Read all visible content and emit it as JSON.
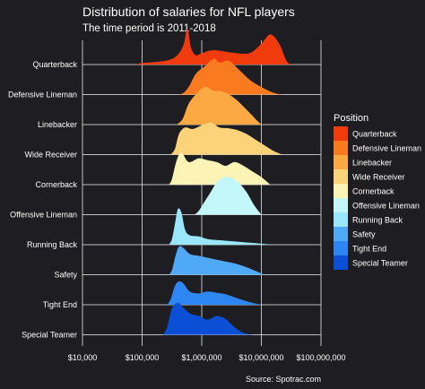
{
  "chart_data": {
    "type": "ridgeline",
    "title": "Distribution of salaries for NFL players",
    "subtitle": "The time period is 2011-2018",
    "caption": "Source: Spotrac.com",
    "xscale": "log10",
    "xlim": [
      10000,
      100000000
    ],
    "xticks": [
      10000,
      100000,
      1000000,
      10000000,
      100000000
    ],
    "xtick_labels": [
      "$10,000",
      "$100,000",
      "$1,000,000",
      "$10,000,000",
      "$100,000,000"
    ],
    "legend": {
      "title": "Position",
      "placement": "right"
    },
    "series": [
      {
        "name": "Quarterback",
        "color": "#f23b0c",
        "density": [
          [
            4.9,
            0
          ],
          [
            5.0,
            0.04
          ],
          [
            5.3,
            0.08
          ],
          [
            5.5,
            0.15
          ],
          [
            5.62,
            0.3
          ],
          [
            5.7,
            0.55
          ],
          [
            5.76,
            0.95
          ],
          [
            5.82,
            0.45
          ],
          [
            5.9,
            0.25
          ],
          [
            6.0,
            0.3
          ],
          [
            6.2,
            0.38
          ],
          [
            6.5,
            0.32
          ],
          [
            6.8,
            0.3
          ],
          [
            7.0,
            0.55
          ],
          [
            7.15,
            0.8
          ],
          [
            7.3,
            0.55
          ],
          [
            7.42,
            0.1
          ],
          [
            7.5,
            0
          ]
        ]
      },
      {
        "name": "Defensive Lineman",
        "color": "#f97a1f",
        "density": [
          [
            5.6,
            0
          ],
          [
            5.7,
            0.05
          ],
          [
            5.8,
            0.25
          ],
          [
            5.9,
            0.55
          ],
          [
            6.05,
            0.75
          ],
          [
            6.2,
            0.95
          ],
          [
            6.3,
            0.85
          ],
          [
            6.45,
            0.9
          ],
          [
            6.6,
            0.7
          ],
          [
            6.8,
            0.4
          ],
          [
            7.0,
            0.2
          ],
          [
            7.2,
            0.05
          ],
          [
            7.35,
            0
          ]
        ]
      },
      {
        "name": "Linebacker",
        "color": "#fca843",
        "density": [
          [
            5.58,
            0
          ],
          [
            5.68,
            0.15
          ],
          [
            5.78,
            0.55
          ],
          [
            5.9,
            0.8
          ],
          [
            6.05,
            1.0
          ],
          [
            6.2,
            0.9
          ],
          [
            6.35,
            0.88
          ],
          [
            6.55,
            0.7
          ],
          [
            6.75,
            0.4
          ],
          [
            6.9,
            0.15
          ],
          [
            7.0,
            0
          ]
        ]
      },
      {
        "name": "Wide Receiver",
        "color": "#fdd37a",
        "density": [
          [
            5.48,
            0
          ],
          [
            5.55,
            0.15
          ],
          [
            5.62,
            0.55
          ],
          [
            5.72,
            0.72
          ],
          [
            5.85,
            0.68
          ],
          [
            6.0,
            0.78
          ],
          [
            6.15,
            0.85
          ],
          [
            6.3,
            0.72
          ],
          [
            6.45,
            0.7
          ],
          [
            6.6,
            0.65
          ],
          [
            6.75,
            0.55
          ],
          [
            6.9,
            0.4
          ],
          [
            7.05,
            0.25
          ],
          [
            7.2,
            0.1
          ],
          [
            7.35,
            0
          ]
        ]
      },
      {
        "name": "Cornerback",
        "color": "#fdf3b4",
        "density": [
          [
            5.45,
            0
          ],
          [
            5.5,
            0.15
          ],
          [
            5.58,
            0.65
          ],
          [
            5.66,
            0.85
          ],
          [
            5.78,
            0.6
          ],
          [
            5.95,
            0.7
          ],
          [
            6.1,
            0.65
          ],
          [
            6.25,
            0.6
          ],
          [
            6.4,
            0.5
          ],
          [
            6.55,
            0.6
          ],
          [
            6.7,
            0.5
          ],
          [
            6.85,
            0.35
          ],
          [
            7.0,
            0.2
          ],
          [
            7.15,
            0
          ]
        ]
      },
      {
        "name": "Offensive Lineman",
        "color": "#c3f7fa",
        "density": [
          [
            5.88,
            0
          ],
          [
            5.95,
            0.1
          ],
          [
            6.05,
            0.35
          ],
          [
            6.15,
            0.6
          ],
          [
            6.25,
            0.85
          ],
          [
            6.38,
            1.0
          ],
          [
            6.5,
            0.98
          ],
          [
            6.62,
            0.85
          ],
          [
            6.75,
            0.6
          ],
          [
            6.88,
            0.25
          ],
          [
            7.0,
            0
          ]
        ]
      },
      {
        "name": "Running Back",
        "color": "#9be6fc",
        "density": [
          [
            5.45,
            0
          ],
          [
            5.5,
            0.15
          ],
          [
            5.55,
            0.55
          ],
          [
            5.6,
            0.95
          ],
          [
            5.66,
            0.85
          ],
          [
            5.72,
            0.4
          ],
          [
            5.8,
            0.25
          ],
          [
            5.95,
            0.22
          ],
          [
            6.1,
            0.15
          ],
          [
            6.3,
            0.12
          ],
          [
            6.6,
            0.08
          ],
          [
            6.9,
            0.04
          ],
          [
            7.2,
            0
          ]
        ]
      },
      {
        "name": "Safety",
        "color": "#4fa9f7",
        "density": [
          [
            5.45,
            0
          ],
          [
            5.5,
            0.12
          ],
          [
            5.56,
            0.5
          ],
          [
            5.62,
            0.75
          ],
          [
            5.7,
            0.7
          ],
          [
            5.8,
            0.55
          ],
          [
            5.95,
            0.5
          ],
          [
            6.1,
            0.45
          ],
          [
            6.25,
            0.4
          ],
          [
            6.4,
            0.35
          ],
          [
            6.55,
            0.3
          ],
          [
            6.75,
            0.2
          ],
          [
            6.9,
            0.1
          ],
          [
            7.05,
            0
          ]
        ]
      },
      {
        "name": "Tight End",
        "color": "#2e86f2",
        "density": [
          [
            5.42,
            0
          ],
          [
            5.48,
            0.15
          ],
          [
            5.55,
            0.5
          ],
          [
            5.62,
            0.62
          ],
          [
            5.7,
            0.55
          ],
          [
            5.8,
            0.35
          ],
          [
            5.95,
            0.3
          ],
          [
            6.1,
            0.35
          ],
          [
            6.25,
            0.32
          ],
          [
            6.4,
            0.28
          ],
          [
            6.55,
            0.2
          ],
          [
            6.7,
            0.12
          ],
          [
            6.85,
            0.05
          ],
          [
            7.0,
            0
          ]
        ]
      },
      {
        "name": "Special Teamer",
        "color": "#0b4fd6",
        "density": [
          [
            5.35,
            0
          ],
          [
            5.42,
            0.2
          ],
          [
            5.5,
            0.7
          ],
          [
            5.6,
            0.85
          ],
          [
            5.7,
            0.7
          ],
          [
            5.82,
            0.55
          ],
          [
            5.95,
            0.5
          ],
          [
            6.1,
            0.4
          ],
          [
            6.25,
            0.5
          ],
          [
            6.4,
            0.42
          ],
          [
            6.55,
            0.2
          ],
          [
            6.7,
            0.05
          ],
          [
            6.85,
            0
          ]
        ]
      }
    ]
  }
}
